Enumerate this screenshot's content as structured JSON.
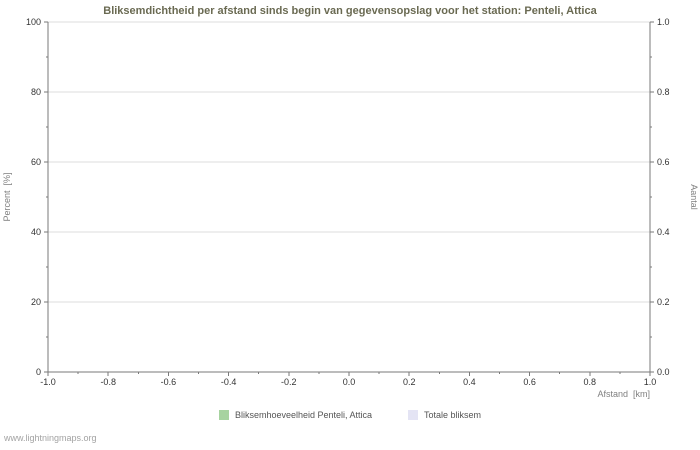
{
  "page": {
    "watermark": "www.lightningmaps.org"
  },
  "chart_data": {
    "type": "line",
    "title": "Bliksemdichtheid per afstand sinds begin van gegevensopslag voor het station: Penteli, Attica",
    "xlabel": "Afstand  [km]",
    "ylabel_left": "Percent  [%]",
    "ylabel_right": "Aantal",
    "xlim": [
      -1.0,
      1.0
    ],
    "x_tick_labels": [
      "-1.0",
      "-0.8",
      "-0.6",
      "-0.4",
      "-0.2",
      "0.0",
      "0.2",
      "0.4",
      "0.6",
      "0.8",
      "1.0"
    ],
    "ylim_left": [
      0,
      100
    ],
    "y_tick_labels_left": [
      "0",
      "20",
      "40",
      "60",
      "80",
      "100"
    ],
    "ylim_right": [
      0.0,
      1.0
    ],
    "y_tick_labels_right": [
      "0.0",
      "0.2",
      "0.4",
      "0.6",
      "0.8",
      "1.0"
    ],
    "grid": "horizontal",
    "legend_position": "bottom",
    "series": [
      {
        "name": "Bliksemhoeveelheid Penteli, Attica",
        "color": "#a7d3a0",
        "points": []
      },
      {
        "name": "Totale bliksem",
        "color": "#e4e4f4",
        "points": []
      }
    ],
    "colors": {
      "title": "#6a6a52",
      "gridline": "#dedede",
      "axis": "#7a7a7a"
    }
  }
}
